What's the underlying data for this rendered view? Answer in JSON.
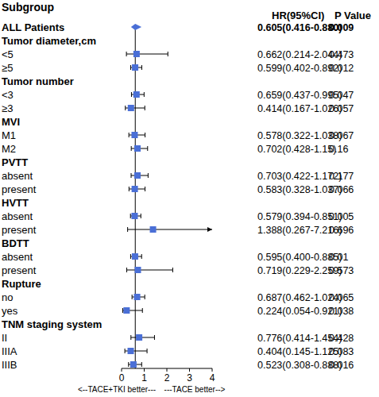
{
  "chart_data": {
    "type": "forest",
    "color": "#4a6fd6",
    "columns": [
      "Subgroup",
      "HR(95%CI)",
      "P Value"
    ],
    "xlim": [
      0,
      4
    ],
    "xticks": [
      0,
      1,
      2,
      3,
      4
    ],
    "annotations": [
      "<--TACE+TKI better---",
      "---TACE better-->"
    ],
    "rows": [
      {
        "label": "ALL Patients",
        "hr": 0.605,
        "lower": 0.416,
        "upper": 0.88,
        "hr_label": "0.605(0.416-0.880)",
        "p": 0.009,
        "marker": "diamond"
      },
      {
        "label": "Tumor diameter,cm"
      },
      {
        "label": "<5",
        "hr": 0.662,
        "lower": 0.214,
        "upper": 2.044,
        "hr_label": "0.662(0.214-2.044)",
        "p": 0.473,
        "marker": "square"
      },
      {
        "label": "≥5",
        "hr": 0.599,
        "lower": 0.402,
        "upper": 0.892,
        "hr_label": "0.599(0.402-0.892)",
        "p": 0.012,
        "marker": "square"
      },
      {
        "label": "Tumor number"
      },
      {
        "label": "<3",
        "hr": 0.659,
        "lower": 0.437,
        "upper": 0.995,
        "hr_label": "0.659(0.437-0.995)",
        "p": 0.047,
        "marker": "square"
      },
      {
        "label": "≥3",
        "hr": 0.414,
        "lower": 0.167,
        "upper": 1.026,
        "hr_label": "0.414(0.167-1.026)",
        "p": 0.057,
        "marker": "square"
      },
      {
        "label": "MVI"
      },
      {
        "label": "M1",
        "hr": 0.578,
        "lower": 0.322,
        "upper": 1.038,
        "hr_label": "0.578(0.322-1.038)",
        "p": 0.067,
        "marker": "square"
      },
      {
        "label": "M2",
        "hr": 0.702,
        "lower": 0.428,
        "upper": 1.15,
        "hr_label": "0.702(0.428-1.15)",
        "p": 0.16,
        "marker": "square"
      },
      {
        "label": "PVTT"
      },
      {
        "label": "absent",
        "hr": 0.703,
        "lower": 0.422,
        "upper": 1.172,
        "hr_label": "0.703(0.422-1.172)",
        "p": 0.177,
        "marker": "square"
      },
      {
        "label": "present",
        "hr": 0.583,
        "lower": 0.328,
        "upper": 1.037,
        "hr_label": "0.583(0.328-1.037)",
        "p": 0.066,
        "marker": "square"
      },
      {
        "label": "HVTT"
      },
      {
        "label": "absent",
        "hr": 0.579,
        "lower": 0.394,
        "upper": 0.851,
        "hr_label": "0.579(0.394-0.851)",
        "p": 0.005,
        "marker": "square"
      },
      {
        "label": "present",
        "hr": 1.388,
        "lower": 0.267,
        "upper": 7.216,
        "hr_label": "1.388(0.267-7.216)",
        "p": 0.696,
        "marker": "square"
      },
      {
        "label": "BDTT"
      },
      {
        "label": "absent",
        "hr": 0.595,
        "lower": 0.4,
        "upper": 0.885,
        "hr_label": "0.595(0.400-0.885)",
        "p": 0.01,
        "marker": "square"
      },
      {
        "label": "present",
        "hr": 0.719,
        "lower": 0.229,
        "upper": 2.259,
        "hr_label": "0.719(0.229-2.259)",
        "p": 0.573,
        "marker": "square"
      },
      {
        "label": "Rupture"
      },
      {
        "label": "no",
        "hr": 0.687,
        "lower": 0.462,
        "upper": 1.024,
        "hr_label": "0.687(0.462-1.024)",
        "p": 0.065,
        "marker": "square"
      },
      {
        "label": "yes",
        "hr": 0.224,
        "lower": 0.054,
        "upper": 0.921,
        "hr_label": "0.224(0.054-0.921)",
        "p": 0.038,
        "marker": "square"
      },
      {
        "label": "TNM staging system"
      },
      {
        "label": "II",
        "hr": 0.776,
        "lower": 0.414,
        "upper": 1.454,
        "hr_label": "0.776(0.414-1.454)",
        "p": 0.428,
        "marker": "square"
      },
      {
        "label": "IIIA",
        "hr": 0.404,
        "lower": 0.145,
        "upper": 1.125,
        "hr_label": "0.404(0.145-1.125)",
        "p": 0.083,
        "marker": "square"
      },
      {
        "label": "IIIB",
        "hr": 0.523,
        "lower": 0.308,
        "upper": 0.888,
        "hr_label": "0.523(0.308-0.888)",
        "p": 0.016,
        "marker": "square"
      }
    ]
  }
}
